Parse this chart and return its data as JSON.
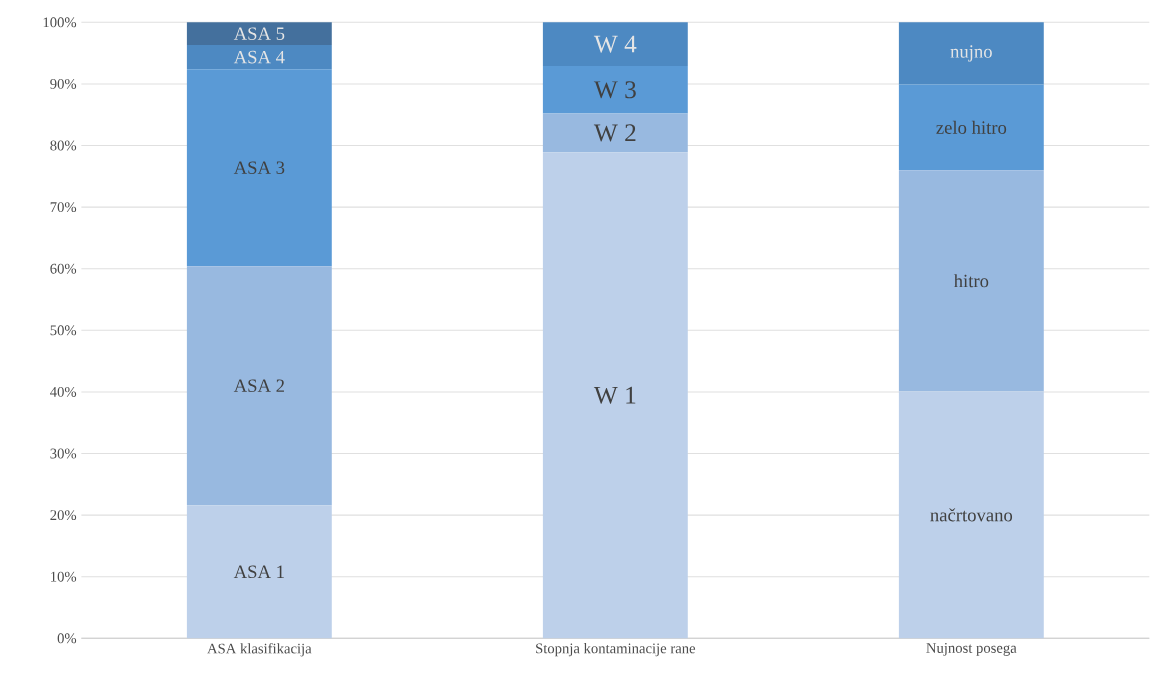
{
  "chart_data": {
    "type": "bar",
    "stacked": true,
    "grid": "y",
    "categories": [
      "ASA klasifikacija",
      "Stopnja kontaminacije rane",
      "Nujnost posega"
    ],
    "ylim": [
      0,
      100
    ],
    "yticks": [
      {
        "value": 0,
        "label": "0%"
      },
      {
        "value": 10,
        "label": "10%"
      },
      {
        "value": 20,
        "label": "20%"
      },
      {
        "value": 30,
        "label": "30%"
      },
      {
        "value": 40,
        "label": "40%"
      },
      {
        "value": 50,
        "label": "50%"
      },
      {
        "value": 60,
        "label": "60%"
      },
      {
        "value": 70,
        "label": "70%"
      },
      {
        "value": 80,
        "label": "80%"
      },
      {
        "value": 90,
        "label": "90%"
      },
      {
        "value": 100,
        "label": "100%"
      }
    ],
    "series": [
      {
        "color": "#bdd0ea",
        "values": [
          21.6,
          78.9,
          40.1
        ],
        "value_labels": [
          "ASA 1",
          "W 1",
          "načrtovano"
        ]
      },
      {
        "color": "#98b9e0",
        "values": [
          38.8,
          6.3,
          35.9
        ],
        "value_labels": [
          "ASA 2",
          "W 2",
          "hitro"
        ]
      },
      {
        "color": "#5a9ad6",
        "values": [
          32.0,
          7.7,
          13.9
        ],
        "value_labels": [
          "ASA 3",
          "W 3",
          "zelo hitro"
        ]
      },
      {
        "color": "#4d89c2",
        "values": [
          3.9,
          7.1,
          10.1
        ],
        "value_labels": [
          "ASA 4",
          "W 4",
          "nujno"
        ]
      },
      {
        "color": "#44709d",
        "values": [
          3.7,
          null,
          null
        ],
        "value_labels": [
          "ASA 5",
          null,
          null
        ]
      }
    ]
  }
}
